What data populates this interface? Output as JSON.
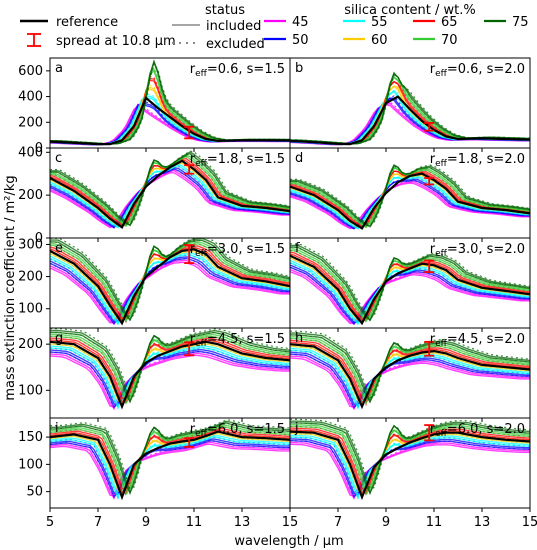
{
  "chart_data": {
    "type": "line",
    "xlabel": "wavelength / μm",
    "ylabel": "mass extinction coefficient / m²/kg",
    "xlim": [
      5,
      15
    ],
    "xticks": [
      5,
      7,
      9,
      11,
      13,
      15
    ],
    "legend": {
      "reference_label": "reference",
      "spread_label": "spread at 10.8 μm",
      "status_title": "status",
      "status_items": [
        "included",
        "excluded"
      ],
      "silica_title": "silica content / wt.%",
      "silica_items": [
        {
          "label": "45",
          "color": "#ff00ff"
        },
        {
          "label": "50",
          "color": "#0000ff"
        },
        {
          "label": "55",
          "color": "#00ffff"
        },
        {
          "label": "60",
          "color": "#ffcc00"
        },
        {
          "label": "65",
          "color": "#ff0000"
        },
        {
          "label": "70",
          "color": "#33cc33"
        },
        {
          "label": "75",
          "color": "#006400"
        }
      ]
    },
    "panels": [
      {
        "letter": "a",
        "reff": "0.6",
        "s": "1.5",
        "ylim": [
          0,
          700
        ],
        "yticks": [
          0,
          200,
          400,
          600
        ],
        "reference": [
          [
            5,
            50
          ],
          [
            6,
            40
          ],
          [
            7,
            30
          ],
          [
            7.5,
            30
          ],
          [
            8,
            60
          ],
          [
            8.5,
            170
          ],
          [
            9,
            390
          ],
          [
            9.5,
            310
          ],
          [
            10,
            240
          ],
          [
            10.5,
            170
          ],
          [
            11,
            110
          ],
          [
            11.5,
            70
          ],
          [
            12,
            55
          ],
          [
            13,
            60
          ],
          [
            14,
            60
          ],
          [
            15,
            58
          ]
        ],
        "peak": 620,
        "spread_center": 120,
        "spread_half": 45
      },
      {
        "letter": "b",
        "reff": "0.6",
        "s": "2.0",
        "ylim": [
          0,
          700
        ],
        "yticks": [],
        "reference": [
          [
            5,
            55
          ],
          [
            6,
            45
          ],
          [
            7,
            32
          ],
          [
            7.5,
            30
          ],
          [
            8,
            60
          ],
          [
            8.5,
            170
          ],
          [
            9,
            350
          ],
          [
            9.5,
            400
          ],
          [
            10,
            300
          ],
          [
            10.5,
            210
          ],
          [
            11,
            140
          ],
          [
            11.5,
            90
          ],
          [
            12,
            70
          ],
          [
            13,
            75
          ],
          [
            14,
            70
          ],
          [
            15,
            65
          ]
        ],
        "peak": 600,
        "spread_center": 165,
        "spread_half": 30
      },
      {
        "letter": "c",
        "reff": "1.8",
        "s": "1.5",
        "ylim": [
          0,
          420
        ],
        "yticks": [
          0,
          200,
          400
        ],
        "reference": [
          [
            5,
            280
          ],
          [
            6,
            220
          ],
          [
            7,
            140
          ],
          [
            7.5,
            90
          ],
          [
            8,
            50
          ],
          [
            8.5,
            160
          ],
          [
            9,
            240
          ],
          [
            9.5,
            290
          ],
          [
            10,
            330
          ],
          [
            10.5,
            360
          ],
          [
            11,
            320
          ],
          [
            11.5,
            270
          ],
          [
            12,
            190
          ],
          [
            13,
            150
          ],
          [
            14,
            140
          ],
          [
            15,
            125
          ]
        ],
        "peak": 380,
        "spread_center": 320,
        "spread_half": 20
      },
      {
        "letter": "d",
        "reff": "1.8",
        "s": "2.0",
        "ylim": [
          0,
          420
        ],
        "yticks": [],
        "reference": [
          [
            5,
            240
          ],
          [
            6,
            200
          ],
          [
            7,
            130
          ],
          [
            7.5,
            80
          ],
          [
            8,
            45
          ],
          [
            8.5,
            140
          ],
          [
            9,
            210
          ],
          [
            9.5,
            260
          ],
          [
            10,
            290
          ],
          [
            10.5,
            300
          ],
          [
            11,
            270
          ],
          [
            11.5,
            230
          ],
          [
            12,
            170
          ],
          [
            13,
            140
          ],
          [
            14,
            130
          ],
          [
            15,
            115
          ]
        ],
        "peak": 360,
        "spread_center": 265,
        "spread_half": 15
      },
      {
        "letter": "e",
        "reff": "3.0",
        "s": "1.5",
        "ylim": [
          40,
          320
        ],
        "yticks": [
          100,
          200,
          300
        ],
        "reference": [
          [
            5,
            280
          ],
          [
            6,
            240
          ],
          [
            7,
            170
          ],
          [
            7.5,
            110
          ],
          [
            8,
            55
          ],
          [
            8.5,
            140
          ],
          [
            9,
            200
          ],
          [
            9.5,
            230
          ],
          [
            10,
            260
          ],
          [
            10.5,
            280
          ],
          [
            11,
            285
          ],
          [
            11.5,
            270
          ],
          [
            12,
            230
          ],
          [
            13,
            195
          ],
          [
            14,
            185
          ],
          [
            15,
            170
          ]
        ],
        "peak": 300,
        "spread_center": 270,
        "spread_half": 28
      },
      {
        "letter": "f",
        "reff": "3.0",
        "s": "2.0",
        "ylim": [
          40,
          320
        ],
        "yticks": [],
        "reference": [
          [
            5,
            265
          ],
          [
            6,
            230
          ],
          [
            7,
            160
          ],
          [
            7.5,
            100
          ],
          [
            8,
            55
          ],
          [
            8.5,
            130
          ],
          [
            9,
            185
          ],
          [
            9.5,
            210
          ],
          [
            10,
            225
          ],
          [
            10.5,
            240
          ],
          [
            11,
            235
          ],
          [
            11.5,
            220
          ],
          [
            12,
            190
          ],
          [
            13,
            165
          ],
          [
            14,
            155
          ],
          [
            15,
            145
          ]
        ],
        "peak": 260,
        "spread_center": 232,
        "spread_half": 18
      },
      {
        "letter": "g",
        "reff": "4.5",
        "s": "1.5",
        "ylim": [
          40,
          235
        ],
        "yticks": [
          100,
          200
        ],
        "reference": [
          [
            5,
            205
          ],
          [
            6,
            200
          ],
          [
            7,
            170
          ],
          [
            7.5,
            130
          ],
          [
            8,
            65
          ],
          [
            8.5,
            130
          ],
          [
            9,
            160
          ],
          [
            9.5,
            175
          ],
          [
            10,
            185
          ],
          [
            10.5,
            195
          ],
          [
            11,
            200
          ],
          [
            11.5,
            205
          ],
          [
            12,
            200
          ],
          [
            13,
            180
          ],
          [
            14,
            170
          ],
          [
            15,
            165
          ]
        ],
        "peak": 215,
        "spread_center": 190,
        "spread_half": 14
      },
      {
        "letter": "h",
        "reff": "4.5",
        "s": "2.0",
        "ylim": [
          40,
          235
        ],
        "yticks": [],
        "reference": [
          [
            5,
            200
          ],
          [
            6,
            195
          ],
          [
            7,
            165
          ],
          [
            7.5,
            125
          ],
          [
            8,
            65
          ],
          [
            8.5,
            125
          ],
          [
            9,
            150
          ],
          [
            9.5,
            165
          ],
          [
            10,
            175
          ],
          [
            10.5,
            182
          ],
          [
            11,
            185
          ],
          [
            11.5,
            180
          ],
          [
            12,
            170
          ],
          [
            13,
            155
          ],
          [
            14,
            150
          ],
          [
            15,
            145
          ]
        ],
        "peak": 200,
        "spread_center": 190,
        "spread_half": 15
      },
      {
        "letter": "i",
        "reff": "6.0",
        "s": "1.5",
        "ylim": [
          20,
          185
        ],
        "yticks": [
          50,
          100,
          150
        ],
        "reference": [
          [
            5,
            150
          ],
          [
            6,
            155
          ],
          [
            7,
            145
          ],
          [
            7.5,
            100
          ],
          [
            8,
            40
          ],
          [
            8.5,
            100
          ],
          [
            9,
            120
          ],
          [
            9.5,
            130
          ],
          [
            10,
            138
          ],
          [
            10.5,
            142
          ],
          [
            11,
            145
          ],
          [
            11.5,
            152
          ],
          [
            12,
            160
          ],
          [
            13,
            150
          ],
          [
            14,
            148
          ],
          [
            15,
            145
          ]
        ],
        "peak": 165,
        "spread_center": 140,
        "spread_half": 8
      },
      {
        "letter": "j",
        "reff": "6.0",
        "s": "2.0",
        "ylim": [
          20,
          185
        ],
        "yticks": [],
        "reference": [
          [
            5,
            160
          ],
          [
            6,
            158
          ],
          [
            7,
            145
          ],
          [
            7.5,
            100
          ],
          [
            8,
            40
          ],
          [
            8.5,
            95
          ],
          [
            9,
            118
          ],
          [
            9.5,
            130
          ],
          [
            10,
            140
          ],
          [
            10.5,
            148
          ],
          [
            11,
            155
          ],
          [
            11.5,
            158
          ],
          [
            12,
            158
          ],
          [
            13,
            150
          ],
          [
            14,
            145
          ],
          [
            15,
            142
          ]
        ],
        "peak": 170,
        "spread_center": 158,
        "spread_half": 14
      }
    ]
  }
}
